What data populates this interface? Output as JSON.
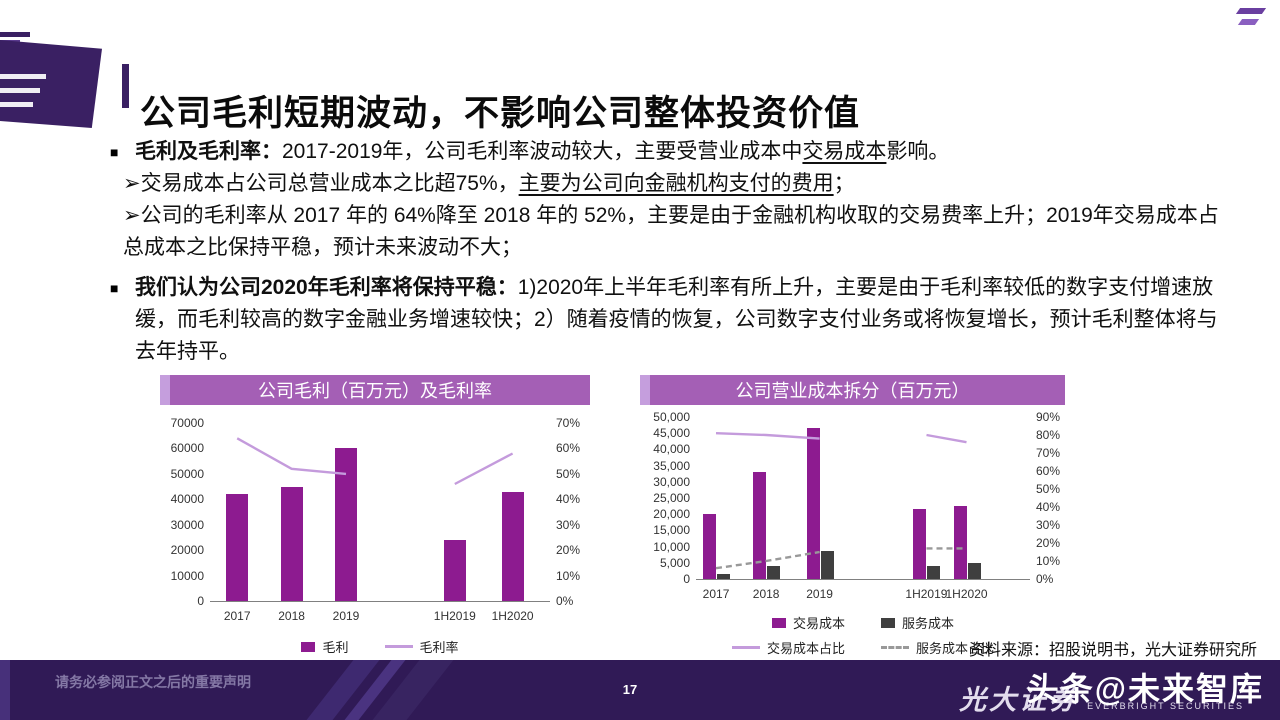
{
  "header": {
    "title": "公司毛利短期波动，不影响公司整体投资价值"
  },
  "body": {
    "b1_marker": "■",
    "b1": [
      "毛利及毛利率：",
      "2017-2019年，公司毛利率波动较大，主要受营业成本中",
      "交易成本",
      "影响。"
    ],
    "s1": [
      "➢交易成本占公司总营业成本之比超75%，",
      "主要为公司向金融机构支付的费用",
      "；"
    ],
    "s2": [
      "➢公司的毛利率从 2017 年的 64%降至 2018 年的 52%，主要是由于金融机构收取的交易费率上升；2019年交易成本占总成本之比保持平稳，预计未来波动不大；"
    ],
    "b2_marker": "■",
    "b2": [
      "我们认为公司2020年毛利率将保持平稳：",
      "1)2020年上半年毛利率有所上升，主要是由于毛利率较低的数字支付增速放缓，而毛利较高的数字金融业务增速较快；2）随着疫情的恢复，公司数字支付业务或将恢复增长，预计毛利整体将与去年持平。"
    ]
  },
  "chart_data": [
    {
      "type": "bar",
      "title": "公司毛利（百万元）及毛利率",
      "categories": [
        "2017",
        "2018",
        "2019",
        "1H2019",
        "1H2020"
      ],
      "series": [
        {
          "name": "毛利",
          "kind": "bar",
          "axis": "left",
          "color": "#8D1B90",
          "values": [
            42000,
            45000,
            60000,
            24000,
            43000
          ]
        },
        {
          "name": "毛利率",
          "kind": "line",
          "axis": "right",
          "color": "#C49BDC",
          "values": [
            64,
            52,
            50,
            46,
            58
          ],
          "gap_after_index": 2
        }
      ],
      "y_left": {
        "min": 0,
        "max": 70000,
        "ticks": [
          "70000",
          "60000",
          "50000",
          "40000",
          "30000",
          "20000",
          "10000",
          "0"
        ]
      },
      "y_right": {
        "min": 0,
        "max": 70,
        "ticks": [
          "70%",
          "60%",
          "50%",
          "40%",
          "30%",
          "20%",
          "10%",
          "0%"
        ]
      },
      "grid": false,
      "legend_position": "bottom"
    },
    {
      "type": "bar",
      "title": "公司营业成本拆分（百万元）",
      "categories": [
        "2017",
        "2018",
        "2019",
        "1H2019",
        "1H2020"
      ],
      "series": [
        {
          "name": "交易成本",
          "kind": "bar",
          "axis": "left",
          "color": "#8D1B90",
          "values": [
            20000,
            33000,
            46500,
            21500,
            22500
          ]
        },
        {
          "name": "服务成本",
          "kind": "bar",
          "axis": "left",
          "color": "#3F3F3F",
          "values": [
            1500,
            4000,
            8500,
            4000,
            4800
          ]
        },
        {
          "name": "交易成本占比",
          "kind": "line",
          "axis": "right",
          "color": "#C49BDC",
          "values": [
            81,
            80,
            78,
            80,
            76
          ],
          "gap_after_index": 2
        },
        {
          "name": "服务成本占比",
          "kind": "line",
          "axis": "right",
          "color": "#999999",
          "dashed": true,
          "values": [
            6,
            10,
            15,
            17,
            17
          ],
          "gap_after_index": 2
        }
      ],
      "y_left": {
        "min": 0,
        "max": 50000,
        "ticks": [
          "50,000",
          "45,000",
          "40,000",
          "35,000",
          "30,000",
          "25,000",
          "20,000",
          "15,000",
          "10,000",
          "5,000",
          "0"
        ]
      },
      "y_right": {
        "min": 0,
        "max": 90,
        "ticks": [
          "90%",
          "80%",
          "70%",
          "60%",
          "50%",
          "40%",
          "30%",
          "20%",
          "10%",
          "0%"
        ]
      },
      "grid": false,
      "legend_position": "bottom"
    }
  ],
  "source_note": "资料来源：招股说明书，光大证券研究所",
  "footer": {
    "disclaimer": "请务必参阅正文之后的重要声明",
    "page_number": "17",
    "logo_text": "光大证券",
    "logo_subtext": "EVERBRIGHT SECURITIES",
    "watermark": "头条@未来智库"
  },
  "colors": {
    "accent_purple_dark": "#3A2063",
    "banner_purple": "#A45FB5",
    "banner_purple_light": "#C59EDD",
    "bar_purple": "#8D1B90",
    "bar_dark": "#3F3F3F",
    "line_light_purple": "#C49BDC",
    "line_gray": "#999999",
    "footer_bg": "#301A56"
  }
}
